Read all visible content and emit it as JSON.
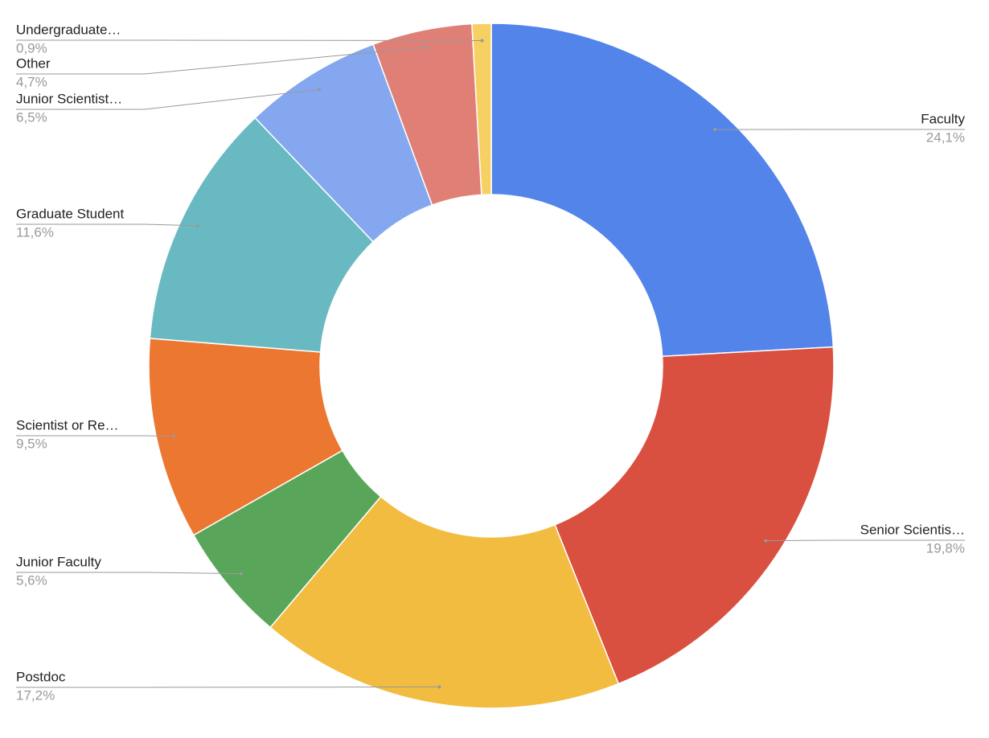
{
  "chart_data": {
    "type": "donut",
    "categories": [
      "Faculty",
      "Senior Scientis…",
      "Postdoc",
      "Junior Faculty",
      "Scientist or Re…",
      "Graduate Student",
      "Junior Scientist…",
      "Other",
      "Undergraduate…"
    ],
    "values": [
      24.1,
      19.8,
      17.2,
      5.6,
      9.5,
      11.6,
      6.5,
      4.7,
      0.9
    ],
    "value_labels": [
      "24,1%",
      "19,8%",
      "17,2%",
      "5,6%",
      "9,5%",
      "11,6%",
      "6,5%",
      "4,7%",
      "0,9%"
    ],
    "colors": [
      "#5384ea",
      "#d95040",
      "#f1bc40",
      "#59a65b",
      "#ec7730",
      "#68b9c2",
      "#84a7f0",
      "#e07f75",
      "#f6d062"
    ]
  }
}
